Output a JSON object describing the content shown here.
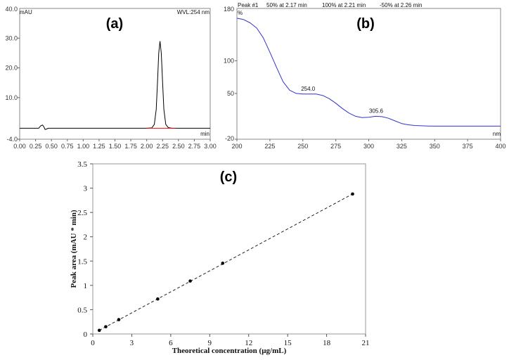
{
  "chart_data": [
    {
      "panel": "(a)",
      "type": "line",
      "ylabel": "mAU",
      "xlabel": "min",
      "header_right": "WVL:254 nm",
      "xlim": [
        0.0,
        3.0
      ],
      "ylim": [
        -4.0,
        40.0
      ],
      "x_ticks": [
        "0.00",
        "0.25",
        "0.50",
        "0.75",
        "1.00",
        "1.25",
        "1.50",
        "1.75",
        "2.00",
        "2.25",
        "2.50",
        "2.75",
        "3.00"
      ],
      "y_ticks": [
        "-4.0",
        "10.0",
        "20.0",
        "30.0",
        "40.0"
      ],
      "x_tick_values": [
        0,
        0.25,
        0.5,
        0.75,
        1.0,
        1.25,
        1.5,
        1.75,
        2.0,
        2.25,
        2.5,
        2.75,
        3.0
      ],
      "y_tick_values": [
        -4,
        10,
        20,
        30,
        40
      ],
      "series": [
        {
          "name": "chromatogram",
          "color": "#000000",
          "x": [
            0,
            0.3,
            0.33,
            0.36,
            0.38,
            0.4,
            0.42,
            0.45,
            1.0,
            2.0,
            2.08,
            2.12,
            2.15,
            2.17,
            2.19,
            2.21,
            2.23,
            2.25,
            2.27,
            2.3,
            2.34,
            2.4,
            3.0
          ],
          "y": [
            -0.3,
            -0.3,
            0.5,
            0.8,
            0.2,
            -0.7,
            -0.6,
            -0.3,
            -0.3,
            -0.3,
            -0.2,
            1.0,
            6.0,
            15.0,
            25.0,
            29.0,
            25.0,
            15.0,
            6.0,
            1.0,
            -0.1,
            -0.3,
            -0.3
          ]
        },
        {
          "name": "baseline",
          "color": "#ff0000",
          "x": [
            2.0,
            2.45
          ],
          "y": [
            -0.3,
            -0.3
          ]
        }
      ]
    },
    {
      "panel": "(b)",
      "type": "line",
      "ylabel": "%",
      "xlabel": "nm",
      "header": {
        "peak": "Peak #1",
        "s50": "50% at 2.17 min",
        "s100": "100% at 2.21 min",
        "sneg50": "-50% at 2.26 min"
      },
      "header_colors": {
        "s50": "#9a8a00",
        "s100": "#000000",
        "sneg50": "#0000cc"
      },
      "xlim": [
        200,
        400
      ],
      "ylim": [
        -20,
        180
      ],
      "x_ticks": [
        "200",
        "225",
        "250",
        "275",
        "300",
        "325",
        "350",
        "375",
        "400"
      ],
      "y_ticks": [
        "-20",
        "50",
        "100",
        "180"
      ],
      "x_tick_values": [
        200,
        225,
        250,
        275,
        300,
        325,
        350,
        375,
        400
      ],
      "y_tick_values": [
        -20,
        50,
        100,
        180
      ],
      "annotations": [
        {
          "text": "254.0",
          "x": 254,
          "y": 49
        },
        {
          "text": "305.6",
          "x": 305.6,
          "y": 15
        }
      ],
      "series": [
        {
          "name": "UV spectrum",
          "color": "#3333cc",
          "x": [
            200,
            205,
            210,
            215,
            220,
            225,
            230,
            235,
            240,
            245,
            250,
            255,
            260,
            265,
            270,
            275,
            280,
            285,
            290,
            295,
            300,
            305,
            310,
            315,
            320,
            325,
            330,
            335,
            340,
            345,
            350,
            400
          ],
          "y": [
            165,
            163,
            158,
            150,
            135,
            113,
            90,
            68,
            55,
            50,
            49,
            49,
            49,
            47,
            42,
            35,
            27,
            20,
            15,
            13,
            13.5,
            15,
            14.5,
            12,
            8,
            4,
            2,
            1,
            0.5,
            0.2,
            0,
            0
          ]
        }
      ]
    },
    {
      "panel": "(c)",
      "type": "scatter",
      "xlabel": "Theoretical concentration (µg/mL)",
      "ylabel": "Peak area (mAU * min)",
      "xlim": [
        0,
        21
      ],
      "ylim": [
        0,
        3.5
      ],
      "x_ticks": [
        "0",
        "3",
        "6",
        "9",
        "12",
        "15",
        "18",
        "21"
      ],
      "y_ticks": [
        "0",
        "0.5",
        "1",
        "1.5",
        "2",
        "2.5",
        "3",
        "3.5"
      ],
      "x_tick_values": [
        0,
        3,
        6,
        9,
        12,
        15,
        18,
        21
      ],
      "y_tick_values": [
        0,
        0.5,
        1,
        1.5,
        2,
        2.5,
        3,
        3.5
      ],
      "trendline": {
        "style": "dashed",
        "x": [
          0.5,
          20
        ],
        "y": [
          0.075,
          2.88
        ]
      },
      "x": [
        0.5,
        1,
        2,
        5,
        7.5,
        10,
        20
      ],
      "y": [
        0.075,
        0.15,
        0.295,
        0.72,
        1.09,
        1.455,
        2.88
      ]
    }
  ]
}
